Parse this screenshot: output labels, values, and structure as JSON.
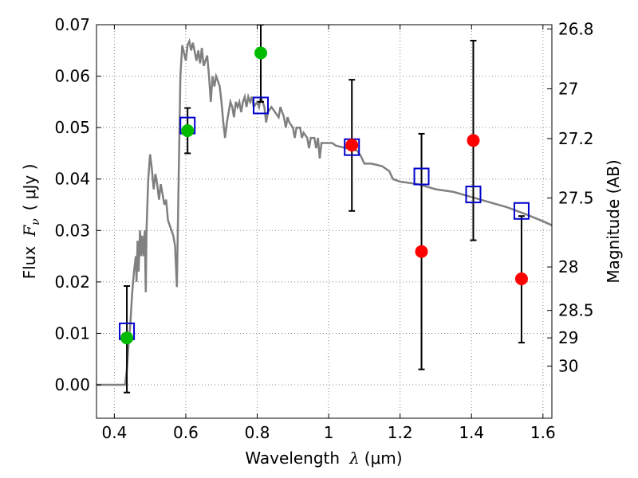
{
  "chart_data": {
    "type": "scatter",
    "title": "",
    "xlabel": {
      "prefix": "Wavelength",
      "symbol": "λ",
      "units": "(μm)"
    },
    "ylabel": {
      "prefix": "Flux",
      "symbol": "F",
      "subscript": "ν",
      "units": "( μJy )"
    },
    "ylabel_right": "Magnitude (AB)",
    "xlim": [
      0.35,
      1.625
    ],
    "ylim": [
      -0.0065,
      0.07
    ],
    "grid": true,
    "x_ticks": [
      0.4,
      0.6,
      0.8,
      1.0,
      1.2,
      1.4,
      1.6
    ],
    "x_tick_labels": [
      "0.4",
      "0.6",
      "0.8",
      "1",
      "1.2",
      "1.4",
      "1.6"
    ],
    "y_ticks": [
      0.0,
      0.01,
      0.02,
      0.03,
      0.04,
      0.05,
      0.06,
      0.07
    ],
    "y_tick_labels": [
      "0.00",
      "0.01",
      "0.02",
      "0.03",
      "0.04",
      "0.05",
      "0.06",
      "0.07"
    ],
    "right_axis_ticks": [
      "26.8",
      "27",
      "27.2",
      "27.5",
      "28",
      "28.5",
      "29",
      "30"
    ],
    "template_spectrum": [
      [
        0.35,
        0.0
      ],
      [
        0.43,
        0.0
      ],
      [
        0.435,
        0.003
      ],
      [
        0.44,
        0.008
      ],
      [
        0.445,
        0.012
      ],
      [
        0.45,
        0.018
      ],
      [
        0.455,
        0.022
      ],
      [
        0.46,
        0.025
      ],
      [
        0.462,
        0.02
      ],
      [
        0.465,
        0.028
      ],
      [
        0.468,
        0.022
      ],
      [
        0.472,
        0.03
      ],
      [
        0.475,
        0.025
      ],
      [
        0.478,
        0.029
      ],
      [
        0.482,
        0.025
      ],
      [
        0.485,
        0.03
      ],
      [
        0.488,
        0.018
      ],
      [
        0.49,
        0.03
      ],
      [
        0.495,
        0.04
      ],
      [
        0.5,
        0.0448
      ],
      [
        0.505,
        0.042
      ],
      [
        0.51,
        0.038
      ],
      [
        0.515,
        0.041
      ],
      [
        0.52,
        0.039
      ],
      [
        0.525,
        0.036
      ],
      [
        0.53,
        0.039
      ],
      [
        0.535,
        0.037
      ],
      [
        0.54,
        0.035
      ],
      [
        0.545,
        0.036
      ],
      [
        0.55,
        0.032
      ],
      [
        0.555,
        0.031
      ],
      [
        0.56,
        0.03
      ],
      [
        0.565,
        0.029
      ],
      [
        0.57,
        0.027
      ],
      [
        0.575,
        0.019
      ],
      [
        0.58,
        0.04
      ],
      [
        0.585,
        0.06
      ],
      [
        0.59,
        0.066
      ],
      [
        0.6,
        0.063
      ],
      [
        0.605,
        0.066
      ],
      [
        0.61,
        0.0668
      ],
      [
        0.615,
        0.065
      ],
      [
        0.62,
        0.0665
      ],
      [
        0.63,
        0.063
      ],
      [
        0.635,
        0.065
      ],
      [
        0.64,
        0.0625
      ],
      [
        0.645,
        0.0655
      ],
      [
        0.65,
        0.062
      ],
      [
        0.655,
        0.063
      ],
      [
        0.66,
        0.064
      ],
      [
        0.665,
        0.06
      ],
      [
        0.67,
        0.055
      ],
      [
        0.675,
        0.06
      ],
      [
        0.68,
        0.058
      ],
      [
        0.685,
        0.06
      ],
      [
        0.69,
        0.059
      ],
      [
        0.695,
        0.058
      ],
      [
        0.7,
        0.055
      ],
      [
        0.705,
        0.051
      ],
      [
        0.71,
        0.048
      ],
      [
        0.715,
        0.051
      ],
      [
        0.72,
        0.053
      ],
      [
        0.725,
        0.055
      ],
      [
        0.73,
        0.054
      ],
      [
        0.735,
        0.052
      ],
      [
        0.74,
        0.055
      ],
      [
        0.745,
        0.054
      ],
      [
        0.75,
        0.055
      ],
      [
        0.755,
        0.053
      ],
      [
        0.76,
        0.055
      ],
      [
        0.765,
        0.056
      ],
      [
        0.77,
        0.054
      ],
      [
        0.775,
        0.056
      ],
      [
        0.78,
        0.055
      ],
      [
        0.785,
        0.056
      ],
      [
        0.79,
        0.054
      ],
      [
        0.8,
        0.055
      ],
      [
        0.805,
        0.054
      ],
      [
        0.81,
        0.056
      ],
      [
        0.82,
        0.054
      ],
      [
        0.825,
        0.051
      ],
      [
        0.83,
        0.053
      ],
      [
        0.84,
        0.054
      ],
      [
        0.85,
        0.053
      ],
      [
        0.86,
        0.052
      ],
      [
        0.865,
        0.054
      ],
      [
        0.875,
        0.052
      ],
      [
        0.88,
        0.05
      ],
      [
        0.885,
        0.052
      ],
      [
        0.89,
        0.051
      ],
      [
        0.9,
        0.05
      ],
      [
        0.905,
        0.048
      ],
      [
        0.91,
        0.05
      ],
      [
        0.92,
        0.05
      ],
      [
        0.925,
        0.048
      ],
      [
        0.93,
        0.049
      ],
      [
        0.94,
        0.048
      ],
      [
        0.945,
        0.046
      ],
      [
        0.95,
        0.048
      ],
      [
        0.96,
        0.048
      ],
      [
        0.965,
        0.046
      ],
      [
        0.97,
        0.048
      ],
      [
        0.975,
        0.044
      ],
      [
        0.98,
        0.047
      ],
      [
        0.99,
        0.047
      ],
      [
        1.0,
        0.047
      ],
      [
        1.01,
        0.047
      ],
      [
        1.02,
        0.0465
      ],
      [
        1.05,
        0.046
      ],
      [
        1.08,
        0.0455
      ],
      [
        1.09,
        0.0445
      ],
      [
        1.1,
        0.043
      ],
      [
        1.12,
        0.043
      ],
      [
        1.15,
        0.0425
      ],
      [
        1.17,
        0.0415
      ],
      [
        1.18,
        0.04
      ],
      [
        1.2,
        0.0395
      ],
      [
        1.25,
        0.039
      ],
      [
        1.3,
        0.038
      ],
      [
        1.35,
        0.0375
      ],
      [
        1.4,
        0.0365
      ],
      [
        1.45,
        0.0355
      ],
      [
        1.5,
        0.0345
      ],
      [
        1.55,
        0.0332
      ],
      [
        1.6,
        0.0318
      ],
      [
        1.625,
        0.031
      ]
    ],
    "series": [
      {
        "marker": "square",
        "color": "#0000cc",
        "points": [
          [
            0.435,
            0.0104
          ],
          [
            0.605,
            0.0504
          ],
          [
            0.81,
            0.0543
          ],
          [
            1.065,
            0.0462
          ],
          [
            1.26,
            0.0405
          ],
          [
            1.405,
            0.037
          ],
          [
            1.54,
            0.0338
          ]
        ]
      },
      {
        "marker": "circle",
        "color": "#00bb00",
        "points": [
          {
            "x": 0.435,
            "y": 0.0091,
            "err_low": -0.0015,
            "err_high": 0.0192
          },
          {
            "x": 0.605,
            "y": 0.0494,
            "err_low": 0.045,
            "err_high": 0.0538
          },
          {
            "x": 0.81,
            "y": 0.0645,
            "err_low": 0.055,
            "err_high": 0.07
          }
        ]
      },
      {
        "marker": "circle",
        "color": "#ff0000",
        "points": [
          {
            "x": 1.065,
            "y": 0.0466,
            "err_low": 0.0338,
            "err_high": 0.0593
          },
          {
            "x": 1.26,
            "y": 0.0259,
            "err_low": 0.003,
            "err_high": 0.0488
          },
          {
            "x": 1.405,
            "y": 0.0475,
            "err_low": 0.0281,
            "err_high": 0.0669
          },
          {
            "x": 1.54,
            "y": 0.0206,
            "err_low": 0.0082,
            "err_high": 0.0328
          }
        ]
      }
    ],
    "colors": {
      "template": "#808080",
      "grid": "#888888",
      "errorbar": "#000000"
    }
  }
}
